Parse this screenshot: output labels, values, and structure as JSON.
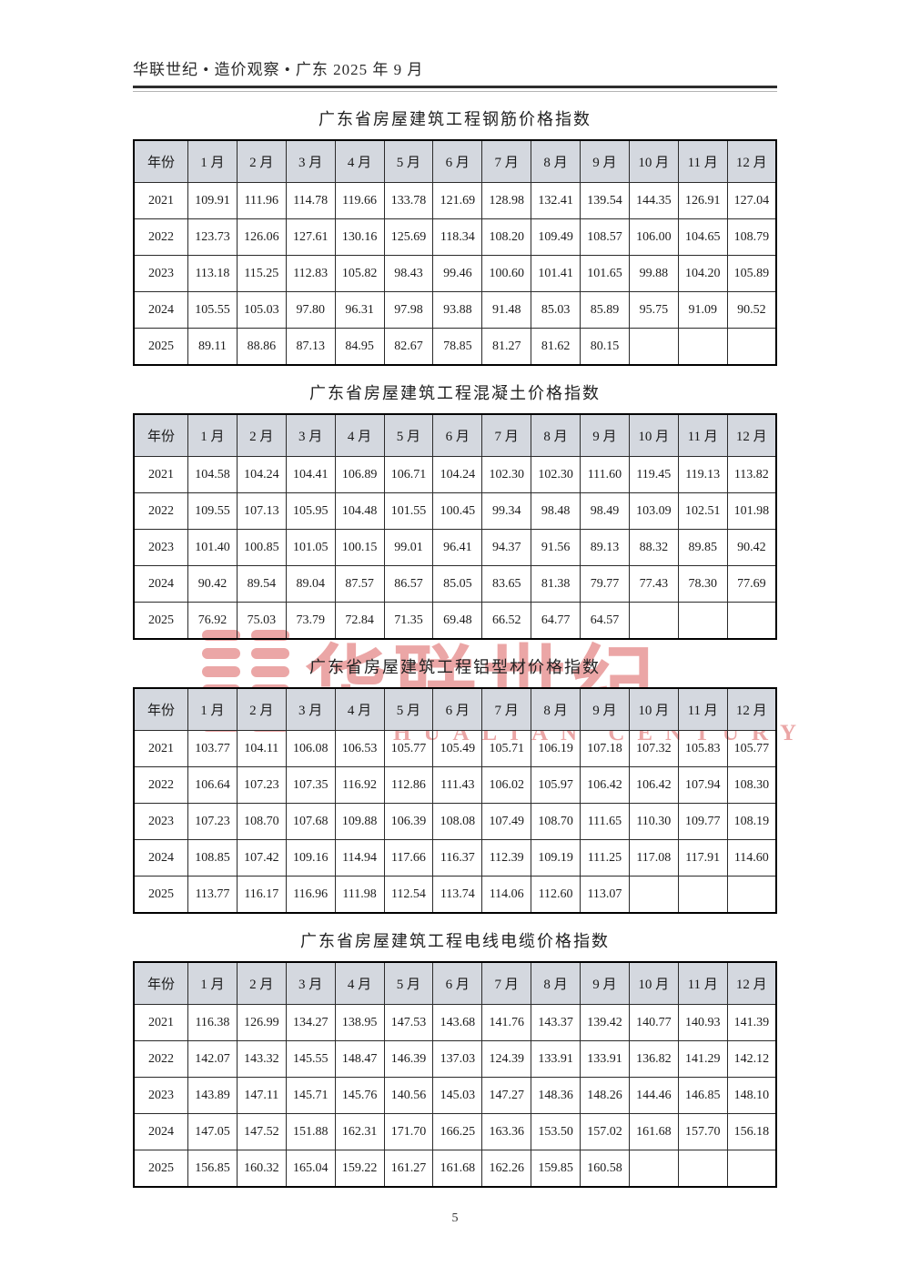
{
  "page": {
    "header": "华联世纪 • 造价观察 • 广东 2025 年 9 月",
    "page_number": "5"
  },
  "watermark": {
    "text": "华联世纪",
    "subtext": "HUALIAN CENTURY",
    "color": "#d94f4f"
  },
  "columns": [
    "年份",
    "1 月",
    "2 月",
    "3 月",
    "4 月",
    "5 月",
    "6 月",
    "7 月",
    "8 月",
    "9 月",
    "10 月",
    "11 月",
    "12 月"
  ],
  "tables": [
    {
      "title": "广东省房屋建筑工程钢筋价格指数",
      "rows": [
        {
          "year": "2021",
          "values": [
            "109.91",
            "111.96",
            "114.78",
            "119.66",
            "133.78",
            "121.69",
            "128.98",
            "132.41",
            "139.54",
            "144.35",
            "126.91",
            "127.04"
          ]
        },
        {
          "year": "2022",
          "values": [
            "123.73",
            "126.06",
            "127.61",
            "130.16",
            "125.69",
            "118.34",
            "108.20",
            "109.49",
            "108.57",
            "106.00",
            "104.65",
            "108.79"
          ]
        },
        {
          "year": "2023",
          "values": [
            "113.18",
            "115.25",
            "112.83",
            "105.82",
            "98.43",
            "99.46",
            "100.60",
            "101.41",
            "101.65",
            "99.88",
            "104.20",
            "105.89"
          ]
        },
        {
          "year": "2024",
          "values": [
            "105.55",
            "105.03",
            "97.80",
            "96.31",
            "97.98",
            "93.88",
            "91.48",
            "85.03",
            "85.89",
            "95.75",
            "91.09",
            "90.52"
          ]
        },
        {
          "year": "2025",
          "values": [
            "89.11",
            "88.86",
            "87.13",
            "84.95",
            "82.67",
            "78.85",
            "81.27",
            "81.62",
            "80.15"
          ]
        }
      ]
    },
    {
      "title": "广东省房屋建筑工程混凝土价格指数",
      "rows": [
        {
          "year": "2021",
          "values": [
            "104.58",
            "104.24",
            "104.41",
            "106.89",
            "106.71",
            "104.24",
            "102.30",
            "102.30",
            "111.60",
            "119.45",
            "119.13",
            "113.82"
          ]
        },
        {
          "year": "2022",
          "values": [
            "109.55",
            "107.13",
            "105.95",
            "104.48",
            "101.55",
            "100.45",
            "99.34",
            "98.48",
            "98.49",
            "103.09",
            "102.51",
            "101.98"
          ]
        },
        {
          "year": "2023",
          "values": [
            "101.40",
            "100.85",
            "101.05",
            "100.15",
            "99.01",
            "96.41",
            "94.37",
            "91.56",
            "89.13",
            "88.32",
            "89.85",
            "90.42"
          ]
        },
        {
          "year": "2024",
          "values": [
            "90.42",
            "89.54",
            "89.04",
            "87.57",
            "86.57",
            "85.05",
            "83.65",
            "81.38",
            "79.77",
            "77.43",
            "78.30",
            "77.69"
          ]
        },
        {
          "year": "2025",
          "values": [
            "76.92",
            "75.03",
            "73.79",
            "72.84",
            "71.35",
            "69.48",
            "66.52",
            "64.77",
            "64.57"
          ]
        }
      ]
    },
    {
      "title": "广东省房屋建筑工程铝型材价格指数",
      "rows": [
        {
          "year": "2021",
          "values": [
            "103.77",
            "104.11",
            "106.08",
            "106.53",
            "105.77",
            "105.49",
            "105.71",
            "106.19",
            "107.18",
            "107.32",
            "105.83",
            "105.77"
          ]
        },
        {
          "year": "2022",
          "values": [
            "106.64",
            "107.23",
            "107.35",
            "116.92",
            "112.86",
            "111.43",
            "106.02",
            "105.97",
            "106.42",
            "106.42",
            "107.94",
            "108.30"
          ]
        },
        {
          "year": "2023",
          "values": [
            "107.23",
            "108.70",
            "107.68",
            "109.88",
            "106.39",
            "108.08",
            "107.49",
            "108.70",
            "111.65",
            "110.30",
            "109.77",
            "108.19"
          ]
        },
        {
          "year": "2024",
          "values": [
            "108.85",
            "107.42",
            "109.16",
            "114.94",
            "117.66",
            "116.37",
            "112.39",
            "109.19",
            "111.25",
            "117.08",
            "117.91",
            "114.60"
          ]
        },
        {
          "year": "2025",
          "values": [
            "113.77",
            "116.17",
            "116.96",
            "111.98",
            "112.54",
            "113.74",
            "114.06",
            "112.60",
            "113.07"
          ]
        }
      ]
    },
    {
      "title": "广东省房屋建筑工程电线电缆价格指数",
      "rows": [
        {
          "year": "2021",
          "values": [
            "116.38",
            "126.99",
            "134.27",
            "138.95",
            "147.53",
            "143.68",
            "141.76",
            "143.37",
            "139.42",
            "140.77",
            "140.93",
            "141.39"
          ]
        },
        {
          "year": "2022",
          "values": [
            "142.07",
            "143.32",
            "145.55",
            "148.47",
            "146.39",
            "137.03",
            "124.39",
            "133.91",
            "133.91",
            "136.82",
            "141.29",
            "142.12"
          ]
        },
        {
          "year": "2023",
          "values": [
            "143.89",
            "147.11",
            "145.71",
            "145.76",
            "140.56",
            "145.03",
            "147.27",
            "148.36",
            "148.26",
            "144.46",
            "146.85",
            "148.10"
          ]
        },
        {
          "year": "2024",
          "values": [
            "147.05",
            "147.52",
            "151.88",
            "162.31",
            "171.70",
            "166.25",
            "163.36",
            "153.50",
            "157.02",
            "161.68",
            "157.70",
            "156.18"
          ]
        },
        {
          "year": "2025",
          "values": [
            "156.85",
            "160.32",
            "165.04",
            "159.22",
            "161.27",
            "161.68",
            "162.26",
            "159.85",
            "160.58"
          ]
        }
      ]
    }
  ]
}
